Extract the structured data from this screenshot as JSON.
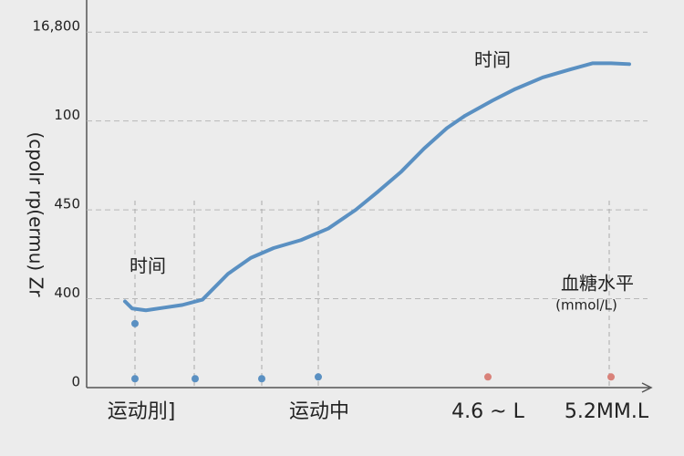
{
  "chart_data": {
    "type": "line",
    "ylabel": "(cpolr rp(ermu) Zr",
    "xlim": [
      0,
      615
    ],
    "ylim": [
      0,
      4.3
    ],
    "yticks": [
      0,
      {
        "value": 1,
        "label": "400"
      },
      {
        "value": 2,
        "label": "450"
      },
      {
        "value": 3,
        "label": "100"
      },
      {
        "value": 4,
        "label": "16,800"
      }
    ],
    "xticks": [
      {
        "value": 60,
        "label": "运动刖]"
      },
      {
        "value": 255,
        "label": "运动中"
      },
      {
        "value": 440,
        "label": "4.6 ~ L"
      },
      {
        "value": 570,
        "label": "5.2MM.L"
      }
    ],
    "grid": true,
    "annotations": [
      "时间",
      "时间",
      "血糖水平",
      "(mmol/L)"
    ],
    "series": [
      {
        "color": "#5a90c2",
        "x": [
          42,
          50,
          65,
          85,
          105,
          127,
          155,
          180,
          205,
          235,
          265,
          295,
          320,
          345,
          370,
          395,
          415,
          445,
          470,
          500,
          530,
          555,
          575,
          595
        ],
        "values": [
          0.97,
          0.89,
          0.87,
          0.9,
          0.93,
          0.99,
          1.28,
          1.46,
          1.57,
          1.66,
          1.79,
          2.0,
          2.21,
          2.43,
          2.69,
          2.92,
          3.06,
          3.23,
          3.36,
          3.49,
          3.58,
          3.65,
          3.65,
          3.64
        ]
      }
    ],
    "guides": [
      53,
      118,
      192,
      254,
      573
    ],
    "points": {
      "x": [
        53,
        53,
        119,
        192,
        254,
        440,
        575
      ],
      "values": [
        0.72,
        0.1,
        0.1,
        0.1,
        0.12,
        0.12,
        0.12
      ],
      "colors": [
        "#5a90c2",
        "#5a90c2",
        "#5a90c2",
        "#5a90c2",
        "#5a90c2",
        "#d9827a",
        "#d9827a"
      ]
    }
  }
}
